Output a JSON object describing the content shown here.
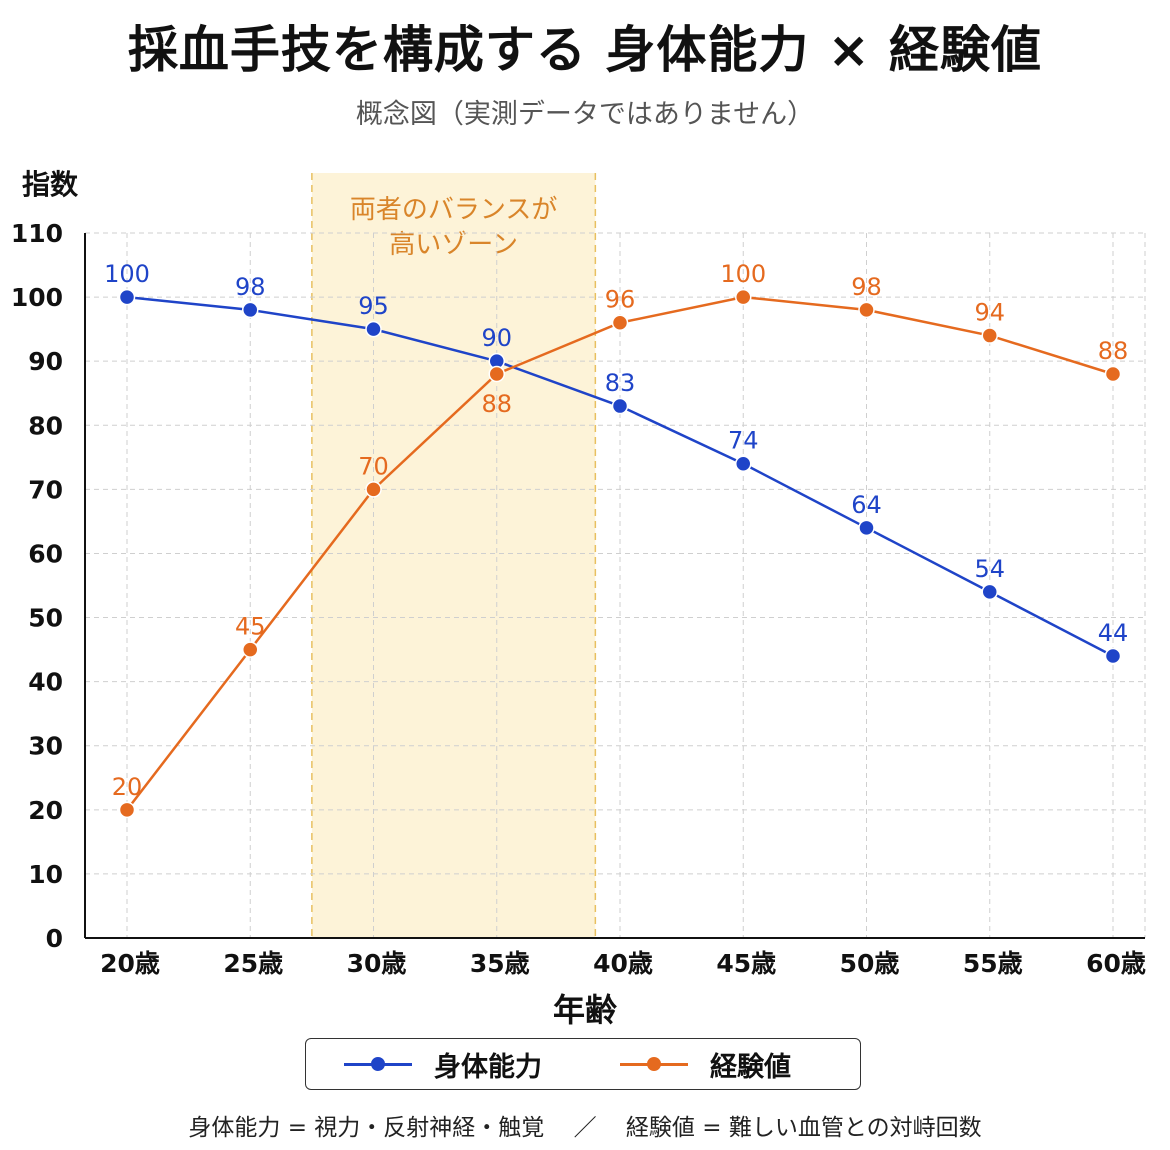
{
  "header": {
    "title": "採血手技を構成する 身体能力 × 経験値",
    "subtitle": "概念図（実測データではありません）"
  },
  "colors": {
    "physical": "#1f44c8",
    "experience": "#e56a1f",
    "zone_fill": "#fdf3d8",
    "zone_border": "#e8c060",
    "zone_text": "#d9852a"
  },
  "chart_data": {
    "type": "line",
    "ylabel": "指数",
    "xlabel": "年齢",
    "ylim": [
      0,
      110
    ],
    "yticks": [
      0,
      10,
      20,
      30,
      40,
      50,
      60,
      70,
      80,
      90,
      100,
      110
    ],
    "x": [
      20,
      25,
      30,
      35,
      40,
      45,
      50,
      55,
      60
    ],
    "categories": [
      "20歳",
      "25歳",
      "30歳",
      "35歳",
      "40歳",
      "45歳",
      "50歳",
      "55歳",
      "60歳"
    ],
    "grid": true,
    "legend_position": "bottom",
    "series": [
      {
        "name": "身体能力",
        "color": "#1f44c8",
        "values": [
          100,
          98,
          95,
          90,
          83,
          74,
          64,
          54,
          44
        ]
      },
      {
        "name": "経験値",
        "color": "#e56a1f",
        "values": [
          20,
          45,
          70,
          88,
          96,
          100,
          98,
          94,
          88
        ]
      }
    ],
    "highlight_zone": {
      "from": 27.5,
      "to": 39.0,
      "label_lines": [
        "両者のバランスが",
        "高いゾーン"
      ]
    }
  },
  "footnote": {
    "left": "身体能力 = 視力・反射神経・触覚",
    "separator": "／",
    "right": "経験値 = 難しい血管との対峙回数"
  }
}
